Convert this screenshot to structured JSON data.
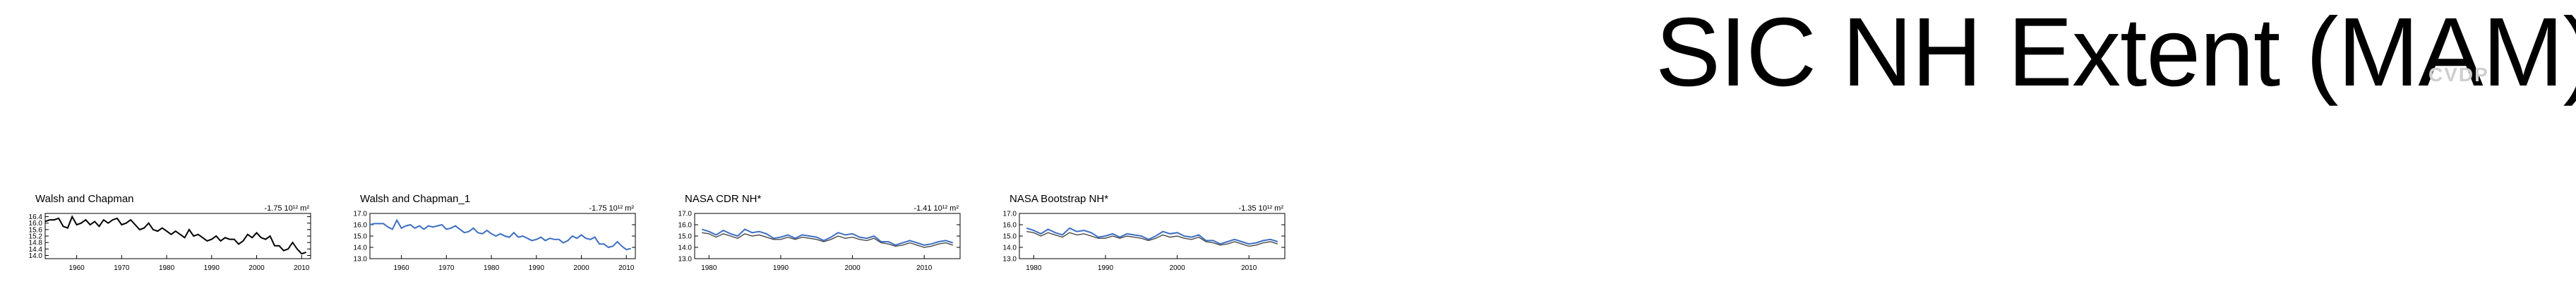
{
  "page": {
    "title": "SIC NH Extent (MAM)",
    "watermark": "CVDP"
  },
  "colors": {
    "obs_line": "#000000",
    "model_line": "#3d6fc4",
    "ref_line": "#4a4a4a",
    "axis": "#000000"
  },
  "chart_data": [
    {
      "type": "line",
      "title": "Walsh and Chapman",
      "trend_label": "-1.75 10¹² m²",
      "xlim": [
        1953,
        2012
      ],
      "ylim": [
        13.8,
        16.6
      ],
      "xticks": [
        1960,
        1970,
        1980,
        1990,
        2000,
        2010
      ],
      "yticks": [
        16.4,
        16.0,
        15.6,
        15.2,
        14.8,
        14.4,
        14.0
      ],
      "ytick_labels": [
        "16.4",
        "16.0",
        "15.6",
        "15.2",
        "14.8",
        "14.4",
        "14.0"
      ],
      "series": [
        {
          "color": "#000000",
          "x": [
            1953,
            1954,
            1955,
            1956,
            1957,
            1958,
            1959,
            1960,
            1961,
            1962,
            1963,
            1964,
            1965,
            1966,
            1967,
            1968,
            1969,
            1970,
            1971,
            1972,
            1973,
            1974,
            1975,
            1976,
            1977,
            1978,
            1979,
            1980,
            1981,
            1982,
            1983,
            1984,
            1985,
            1986,
            1987,
            1988,
            1989,
            1990,
            1991,
            1992,
            1993,
            1994,
            1995,
            1996,
            1997,
            1998,
            1999,
            2000,
            2001,
            2002,
            2003,
            2004,
            2005,
            2006,
            2007,
            2008,
            2009,
            2010,
            2011
          ],
          "y": [
            16.1,
            16.2,
            16.2,
            16.3,
            15.8,
            15.7,
            16.4,
            15.9,
            16.0,
            16.2,
            15.9,
            16.1,
            15.8,
            16.2,
            16.0,
            16.2,
            16.3,
            15.9,
            16.0,
            16.2,
            15.9,
            15.6,
            15.7,
            16.0,
            15.6,
            15.5,
            15.7,
            15.5,
            15.3,
            15.5,
            15.3,
            15.1,
            15.6,
            15.2,
            15.3,
            15.1,
            14.9,
            15.0,
            15.2,
            14.9,
            15.1,
            15.0,
            15.0,
            14.7,
            14.9,
            15.3,
            15.1,
            15.4,
            15.1,
            15.0,
            15.2,
            14.6,
            14.6,
            14.3,
            14.4,
            14.8,
            14.4,
            14.1,
            14.2
          ]
        }
      ]
    },
    {
      "type": "line",
      "title": "Walsh and Chapman_1",
      "trend_label": "-1.75 10¹² m²",
      "xlim": [
        1953,
        2012
      ],
      "ylim": [
        13.0,
        17.0
      ],
      "xticks": [
        1960,
        1970,
        1980,
        1990,
        2000,
        2010
      ],
      "yticks": [
        17.0,
        16.0,
        15.0,
        14.0,
        13.0
      ],
      "ytick_labels": [
        "17.0",
        "16.0",
        "15.0",
        "14.0",
        "13.0"
      ],
      "series": [
        {
          "color": "#3d6fc4",
          "x": [
            1953,
            1954,
            1955,
            1956,
            1957,
            1958,
            1959,
            1960,
            1961,
            1962,
            1963,
            1964,
            1965,
            1966,
            1967,
            1968,
            1969,
            1970,
            1971,
            1972,
            1973,
            1974,
            1975,
            1976,
            1977,
            1978,
            1979,
            1980,
            1981,
            1982,
            1983,
            1984,
            1985,
            1986,
            1987,
            1988,
            1989,
            1990,
            1991,
            1992,
            1993,
            1994,
            1995,
            1996,
            1997,
            1998,
            1999,
            2000,
            2001,
            2002,
            2003,
            2004,
            2005,
            2006,
            2007,
            2008,
            2009,
            2010,
            2011
          ],
          "y": [
            16.0,
            16.1,
            16.1,
            16.1,
            15.8,
            15.6,
            16.4,
            15.7,
            15.9,
            16.0,
            15.7,
            15.9,
            15.6,
            15.9,
            15.8,
            15.9,
            16.0,
            15.6,
            15.7,
            15.9,
            15.6,
            15.3,
            15.4,
            15.7,
            15.3,
            15.2,
            15.5,
            15.2,
            15.0,
            15.2,
            15.0,
            14.9,
            15.3,
            14.9,
            15.0,
            14.8,
            14.6,
            14.7,
            14.9,
            14.6,
            14.8,
            14.7,
            14.7,
            14.4,
            14.6,
            15.0,
            14.8,
            15.1,
            14.8,
            14.7,
            14.9,
            14.3,
            14.3,
            14.0,
            14.1,
            14.5,
            14.1,
            13.8,
            13.9
          ]
        }
      ]
    },
    {
      "type": "line",
      "title": "NASA CDR NH*",
      "trend_label": "-1.41 10¹² m²",
      "xlim": [
        1978,
        2015
      ],
      "ylim": [
        13.0,
        17.0
      ],
      "xticks": [
        1980,
        1990,
        2000,
        2010
      ],
      "yticks": [
        17.0,
        16.0,
        15.0,
        14.0,
        13.0
      ],
      "ytick_labels": [
        "17.0",
        "16.0",
        "15.0",
        "14.0",
        "13.0"
      ],
      "series": [
        {
          "color": "#3d6fc4",
          "x": [
            1979,
            1980,
            1981,
            1982,
            1983,
            1984,
            1985,
            1986,
            1987,
            1988,
            1989,
            1990,
            1991,
            1992,
            1993,
            1994,
            1995,
            1996,
            1997,
            1998,
            1999,
            2000,
            2001,
            2002,
            2003,
            2004,
            2005,
            2006,
            2007,
            2008,
            2009,
            2010,
            2011,
            2012,
            2013,
            2014
          ],
          "y": [
            15.6,
            15.4,
            15.1,
            15.5,
            15.2,
            15.0,
            15.6,
            15.3,
            15.4,
            15.2,
            14.8,
            14.9,
            15.1,
            14.8,
            15.1,
            15.0,
            14.9,
            14.6,
            14.9,
            15.3,
            15.1,
            15.2,
            14.9,
            14.8,
            15.0,
            14.5,
            14.5,
            14.2,
            14.4,
            14.6,
            14.4,
            14.2,
            14.3,
            14.5,
            14.6,
            14.4
          ]
        },
        {
          "color": "#4a4a4a",
          "x": [
            1979,
            1980,
            1981,
            1982,
            1983,
            1984,
            1985,
            1986,
            1987,
            1988,
            1989,
            1990,
            1991,
            1992,
            1993,
            1994,
            1995,
            1996,
            1997,
            1998,
            1999,
            2000,
            2001,
            2002,
            2003,
            2004,
            2005,
            2006,
            2007,
            2008,
            2009,
            2010,
            2011,
            2012,
            2013,
            2014
          ],
          "y": [
            15.3,
            15.2,
            14.9,
            15.2,
            15.0,
            14.8,
            15.2,
            15.0,
            15.1,
            14.9,
            14.7,
            14.7,
            14.9,
            14.7,
            14.9,
            14.8,
            14.7,
            14.5,
            14.7,
            15.0,
            14.8,
            14.9,
            14.7,
            14.6,
            14.8,
            14.4,
            14.3,
            14.1,
            14.2,
            14.4,
            14.2,
            14.0,
            14.1,
            14.3,
            14.4,
            14.2
          ]
        }
      ]
    },
    {
      "type": "line",
      "title": "NASA Bootstrap NH*",
      "trend_label": "-1.35 10¹² m²",
      "xlim": [
        1978,
        2015
      ],
      "ylim": [
        13.0,
        17.0
      ],
      "xticks": [
        1980,
        1990,
        2000,
        2010
      ],
      "yticks": [
        17.0,
        16.0,
        15.0,
        14.0,
        13.0
      ],
      "ytick_labels": [
        "17.0",
        "16.0",
        "15.0",
        "14.0",
        "13.0"
      ],
      "series": [
        {
          "color": "#3d6fc4",
          "x": [
            1979,
            1980,
            1981,
            1982,
            1983,
            1984,
            1985,
            1986,
            1987,
            1988,
            1989,
            1990,
            1991,
            1992,
            1993,
            1994,
            1995,
            1996,
            1997,
            1998,
            1999,
            2000,
            2001,
            2002,
            2003,
            2004,
            2005,
            2006,
            2007,
            2008,
            2009,
            2010,
            2011,
            2012,
            2013,
            2014
          ],
          "y": [
            15.7,
            15.5,
            15.2,
            15.6,
            15.3,
            15.1,
            15.7,
            15.4,
            15.5,
            15.3,
            14.9,
            15.0,
            15.2,
            14.9,
            15.2,
            15.1,
            15.0,
            14.7,
            15.0,
            15.4,
            15.2,
            15.3,
            15.0,
            14.9,
            15.1,
            14.6,
            14.6,
            14.3,
            14.5,
            14.7,
            14.5,
            14.3,
            14.4,
            14.6,
            14.7,
            14.5
          ]
        },
        {
          "color": "#4a4a4a",
          "x": [
            1979,
            1980,
            1981,
            1982,
            1983,
            1984,
            1985,
            1986,
            1987,
            1988,
            1989,
            1990,
            1991,
            1992,
            1993,
            1994,
            1995,
            1996,
            1997,
            1998,
            1999,
            2000,
            2001,
            2002,
            2003,
            2004,
            2005,
            2006,
            2007,
            2008,
            2009,
            2010,
            2011,
            2012,
            2013,
            2014
          ],
          "y": [
            15.4,
            15.3,
            15.0,
            15.3,
            15.1,
            14.9,
            15.3,
            15.1,
            15.2,
            15.0,
            14.8,
            14.8,
            15.0,
            14.8,
            15.0,
            14.9,
            14.8,
            14.6,
            14.8,
            15.1,
            14.9,
            15.0,
            14.8,
            14.7,
            14.9,
            14.5,
            14.4,
            14.2,
            14.3,
            14.5,
            14.3,
            14.1,
            14.2,
            14.4,
            14.5,
            14.3
          ]
        }
      ]
    }
  ]
}
